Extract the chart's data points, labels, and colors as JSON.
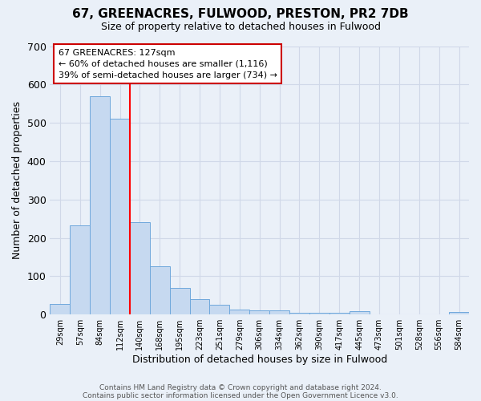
{
  "title": "67, GREENACRES, FULWOOD, PRESTON, PR2 7DB",
  "subtitle": "Size of property relative to detached houses in Fulwood",
  "xlabel": "Distribution of detached houses by size in Fulwood",
  "ylabel": "Number of detached properties",
  "bin_labels": [
    "29sqm",
    "57sqm",
    "84sqm",
    "112sqm",
    "140sqm",
    "168sqm",
    "195sqm",
    "223sqm",
    "251sqm",
    "279sqm",
    "306sqm",
    "334sqm",
    "362sqm",
    "390sqm",
    "417sqm",
    "445sqm",
    "473sqm",
    "501sqm",
    "528sqm",
    "556sqm",
    "584sqm"
  ],
  "bin_values": [
    28,
    232,
    570,
    510,
    241,
    126,
    70,
    41,
    26,
    14,
    10,
    10,
    4,
    5,
    5,
    8,
    0,
    0,
    0,
    0,
    6
  ],
  "bar_color": "#c6d9f0",
  "bar_edge_color": "#6fa8dc",
  "red_line_x": 3.5,
  "annotation_title": "67 GREENACRES: 127sqm",
  "annotation_line1": "← 60% of detached houses are smaller (1,116)",
  "annotation_line2": "39% of semi-detached houses are larger (734) →",
  "annotation_box_color": "#ffffff",
  "annotation_box_edge_color": "#cc0000",
  "ylim": [
    0,
    700
  ],
  "yticks": [
    0,
    100,
    200,
    300,
    400,
    500,
    600,
    700
  ],
  "grid_color": "#d0d8e8",
  "background_color": "#eaf0f8",
  "footer_line1": "Contains HM Land Registry data © Crown copyright and database right 2024.",
  "footer_line2": "Contains public sector information licensed under the Open Government Licence v3.0."
}
